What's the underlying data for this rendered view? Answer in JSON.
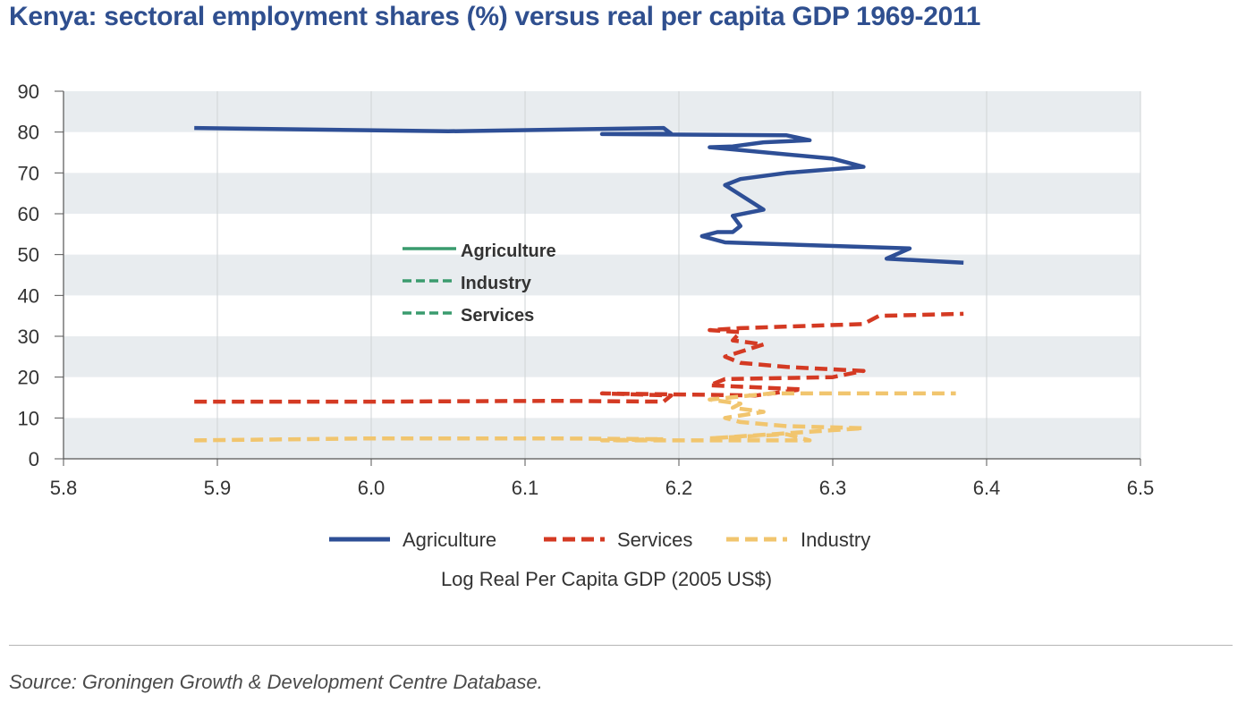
{
  "title": "Kenya: sectoral employment shares (%) versus real per capita GDP 1969-2011",
  "source": "Source: Groningen Growth & Development Centre Database.",
  "chart_data": {
    "type": "line",
    "xlabel": "Log Real Per Capita GDP (2005 US$)",
    "ylabel": "",
    "xlim": [
      5.8,
      6.5
    ],
    "ylim": [
      0,
      90
    ],
    "x_ticks": [
      "5.8",
      "5.9",
      "6.0",
      "6.1",
      "6.2",
      "6.3",
      "6.4",
      "6.5"
    ],
    "y_ticks": [
      "0",
      "10",
      "20",
      "30",
      "40",
      "50",
      "60",
      "70",
      "80",
      "90"
    ],
    "grid": "alternating horizontal bands with vertical gridlines",
    "legend_placement": "bottom",
    "series": [
      {
        "name": "Agriculture",
        "color": "#2e4f96",
        "dash": "solid",
        "points": [
          [
            5.885,
            81.0
          ],
          [
            6.05,
            80.2
          ],
          [
            6.19,
            81.0
          ],
          [
            6.195,
            79.6
          ],
          [
            6.15,
            79.5
          ],
          [
            6.27,
            79.2
          ],
          [
            6.285,
            78.0
          ],
          [
            6.255,
            77.5
          ],
          [
            6.235,
            76.5
          ],
          [
            6.22,
            76.3
          ],
          [
            6.3,
            73.5
          ],
          [
            6.32,
            71.5
          ],
          [
            6.27,
            70.0
          ],
          [
            6.24,
            68.5
          ],
          [
            6.23,
            67.0
          ],
          [
            6.255,
            61.0
          ],
          [
            6.235,
            59.5
          ],
          [
            6.24,
            57.0
          ],
          [
            6.235,
            55.5
          ],
          [
            6.225,
            55.5
          ],
          [
            6.215,
            54.5
          ],
          [
            6.23,
            53.0
          ],
          [
            6.35,
            51.5
          ],
          [
            6.335,
            49.0
          ],
          [
            6.385,
            48.0
          ]
        ]
      },
      {
        "name": "Services",
        "color": "#d43a23",
        "dash": "dashed",
        "points": [
          [
            5.885,
            14.0
          ],
          [
            6.0,
            14.0
          ],
          [
            6.12,
            14.2
          ],
          [
            6.19,
            14.0
          ],
          [
            6.195,
            15.5
          ],
          [
            6.15,
            16.0
          ],
          [
            6.25,
            15.5
          ],
          [
            6.28,
            17.0
          ],
          [
            6.22,
            18.0
          ],
          [
            6.23,
            19.5
          ],
          [
            6.3,
            20.0
          ],
          [
            6.32,
            21.5
          ],
          [
            6.27,
            22.5
          ],
          [
            6.24,
            23.5
          ],
          [
            6.23,
            25.0
          ],
          [
            6.255,
            28.0
          ],
          [
            6.235,
            29.0
          ],
          [
            6.24,
            31.0
          ],
          [
            6.22,
            31.5
          ],
          [
            6.24,
            32.0
          ],
          [
            6.32,
            33.0
          ],
          [
            6.33,
            35.0
          ],
          [
            6.385,
            35.5
          ]
        ]
      },
      {
        "name": "Industry",
        "color": "#f1c56e",
        "dash": "dashed",
        "points": [
          [
            5.885,
            4.5
          ],
          [
            6.0,
            5.0
          ],
          [
            6.12,
            5.0
          ],
          [
            6.19,
            4.8
          ],
          [
            6.15,
            4.5
          ],
          [
            6.285,
            4.5
          ],
          [
            6.27,
            6.0
          ],
          [
            6.22,
            5.0
          ],
          [
            6.3,
            7.0
          ],
          [
            6.32,
            7.5
          ],
          [
            6.27,
            8.0
          ],
          [
            6.24,
            9.0
          ],
          [
            6.23,
            10.0
          ],
          [
            6.255,
            11.5
          ],
          [
            6.235,
            12.5
          ],
          [
            6.24,
            13.5
          ],
          [
            6.22,
            14.5
          ],
          [
            6.26,
            16.0
          ],
          [
            6.38,
            16.0
          ]
        ]
      }
    ],
    "inset_legend": [
      {
        "name": "Agriculture",
        "color": "#3a9b6e",
        "dash": "solid"
      },
      {
        "name": "Industry",
        "color": "#3a9b6e",
        "dash": "dashed"
      },
      {
        "name": "Services",
        "color": "#3a9b6e",
        "dash": "dashed"
      }
    ],
    "bottom_legend": [
      {
        "name": "Agriculture",
        "color": "#2e4f96",
        "dash": "solid"
      },
      {
        "name": "Services",
        "color": "#d43a23",
        "dash": "dashed"
      },
      {
        "name": "Industry",
        "color": "#f1c56e",
        "dash": "dashed"
      }
    ],
    "band_color": "#e8ecef",
    "text_color": "#333333"
  }
}
